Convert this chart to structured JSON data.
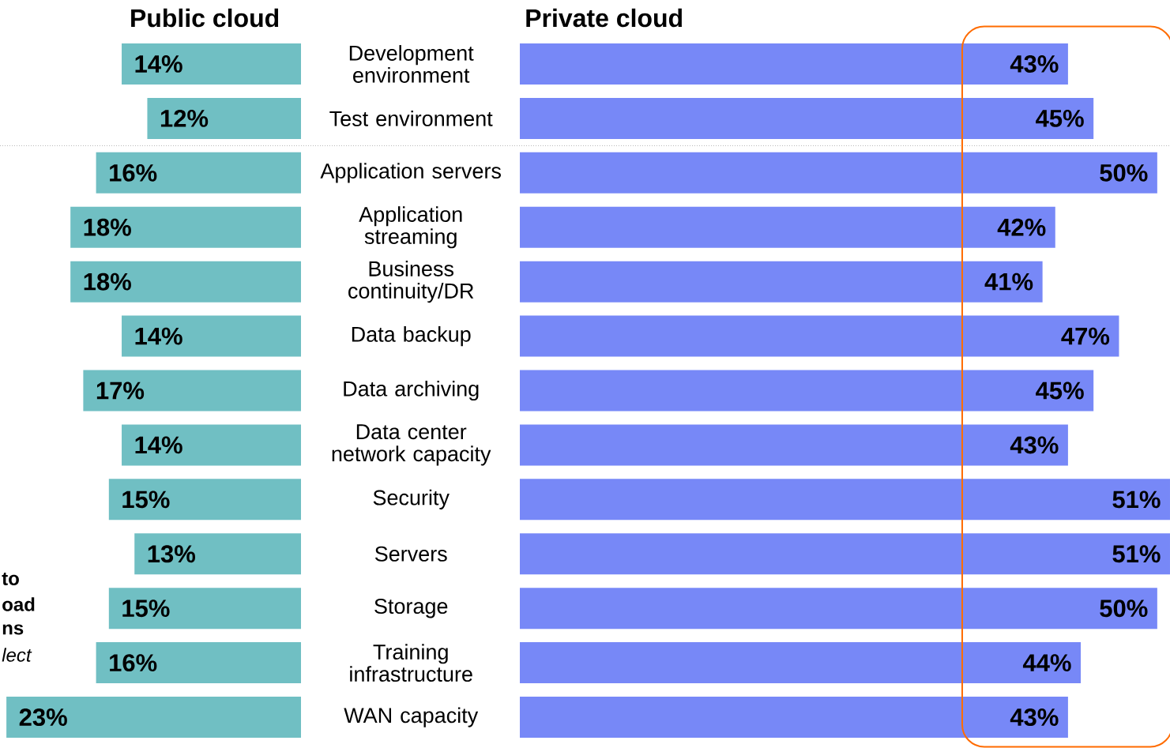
{
  "chart_data": [
    {
      "type": "bar",
      "orientation": "horizontal",
      "title": "Public cloud",
      "categories": [
        "Development environment",
        "Test environment",
        "Application servers",
        "Application streaming",
        "Business continuity/DR",
        "Data backup",
        "Data archiving",
        "Data center network capacity",
        "Security",
        "Servers",
        "Storage",
        "Training infrastructure",
        "WAN capacity"
      ],
      "values": [
        14,
        12,
        16,
        18,
        18,
        14,
        17,
        14,
        15,
        13,
        15,
        16,
        23
      ],
      "value_labels": [
        "14%",
        "12%",
        "16%",
        "18%",
        "18%",
        "14%",
        "17%",
        "14%",
        "15%",
        "13%",
        "15%",
        "16%",
        "23%"
      ],
      "color": "#70bfc3",
      "xlim": [
        23.5,
        0
      ],
      "annotations": [
        "to",
        "oad",
        "ns",
        "lect"
      ]
    },
    {
      "type": "bar",
      "orientation": "horizontal",
      "title": "Private cloud",
      "tick_labels": false,
      "values": [
        43,
        45,
        50,
        42,
        41,
        47,
        45,
        43,
        51,
        51,
        50,
        44,
        43
      ],
      "value_labels": [
        "43%",
        "45%",
        "50%",
        "42%",
        "41%",
        "47%",
        "45%",
        "43%",
        "51%",
        "51%",
        "50%",
        "44%",
        "43%"
      ],
      "color": "#7788f7",
      "xlim": [
        0,
        51
      ]
    }
  ]
}
